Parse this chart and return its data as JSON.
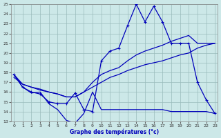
{
  "xlabel": "Graphe des températures (°c)",
  "bg_color": "#cce8e8",
  "line_color": "#0000bb",
  "grid_color": "#99bbbb",
  "xmin": 0,
  "xmax": 23,
  "ymin": 13,
  "ymax": 25,
  "yticks": [
    13,
    14,
    15,
    16,
    17,
    18,
    19,
    20,
    21,
    22,
    23,
    24,
    25
  ],
  "xticks": [
    0,
    1,
    2,
    3,
    4,
    5,
    6,
    7,
    8,
    9,
    10,
    11,
    12,
    13,
    14,
    15,
    16,
    17,
    18,
    19,
    20,
    21,
    22,
    23
  ],
  "curve_dip_x": [
    0,
    1,
    2,
    3,
    4,
    5,
    6,
    7,
    8,
    9,
    10,
    11,
    12,
    13,
    14,
    15,
    16,
    17,
    18,
    19,
    20,
    21,
    22,
    23
  ],
  "curve_dip_y": [
    17.8,
    16.5,
    15.9,
    16.0,
    14.8,
    14.2,
    13.1,
    12.8,
    13.8,
    16.0,
    14.2,
    14.2,
    14.2,
    14.2,
    14.2,
    14.2,
    14.2,
    14.2,
    14.0,
    14.0,
    14.0,
    14.0,
    14.0,
    13.8
  ],
  "curve_low_x": [
    0,
    1,
    2,
    3,
    4,
    5,
    6,
    7,
    8,
    9,
    10,
    11,
    12,
    13,
    14,
    15,
    16,
    17,
    18,
    19,
    20,
    21,
    22,
    23
  ],
  "curve_low_y": [
    17.5,
    16.8,
    16.5,
    16.2,
    16.0,
    15.8,
    15.5,
    15.5,
    16.0,
    16.5,
    17.0,
    17.5,
    17.8,
    18.2,
    18.5,
    18.8,
    19.0,
    19.2,
    19.5,
    19.8,
    20.0,
    20.5,
    20.8,
    21.0
  ],
  "curve_high_x": [
    0,
    1,
    2,
    3,
    4,
    5,
    6,
    7,
    8,
    9,
    10,
    11,
    12,
    13,
    14,
    15,
    16,
    17,
    18,
    19,
    20,
    21,
    22,
    23
  ],
  "curve_high_y": [
    17.8,
    16.8,
    16.5,
    16.3,
    16.0,
    15.8,
    15.5,
    15.5,
    16.0,
    17.0,
    17.8,
    18.2,
    18.5,
    19.2,
    19.8,
    20.2,
    20.5,
    20.8,
    21.2,
    21.5,
    21.8,
    21.0,
    21.0,
    21.0
  ],
  "curve_spike_x": [
    0,
    1,
    2,
    3,
    4,
    5,
    6,
    7,
    8,
    9,
    10,
    11,
    12,
    13,
    14,
    15,
    16,
    17,
    18,
    19,
    20,
    21,
    22,
    23
  ],
  "curve_spike_y": [
    17.8,
    16.5,
    16.0,
    15.8,
    15.0,
    14.8,
    14.8,
    15.9,
    14.2,
    14.0,
    19.2,
    20.2,
    20.5,
    22.8,
    25.0,
    23.2,
    24.8,
    23.2,
    21.0,
    21.0,
    21.0,
    17.0,
    15.2,
    13.8
  ]
}
